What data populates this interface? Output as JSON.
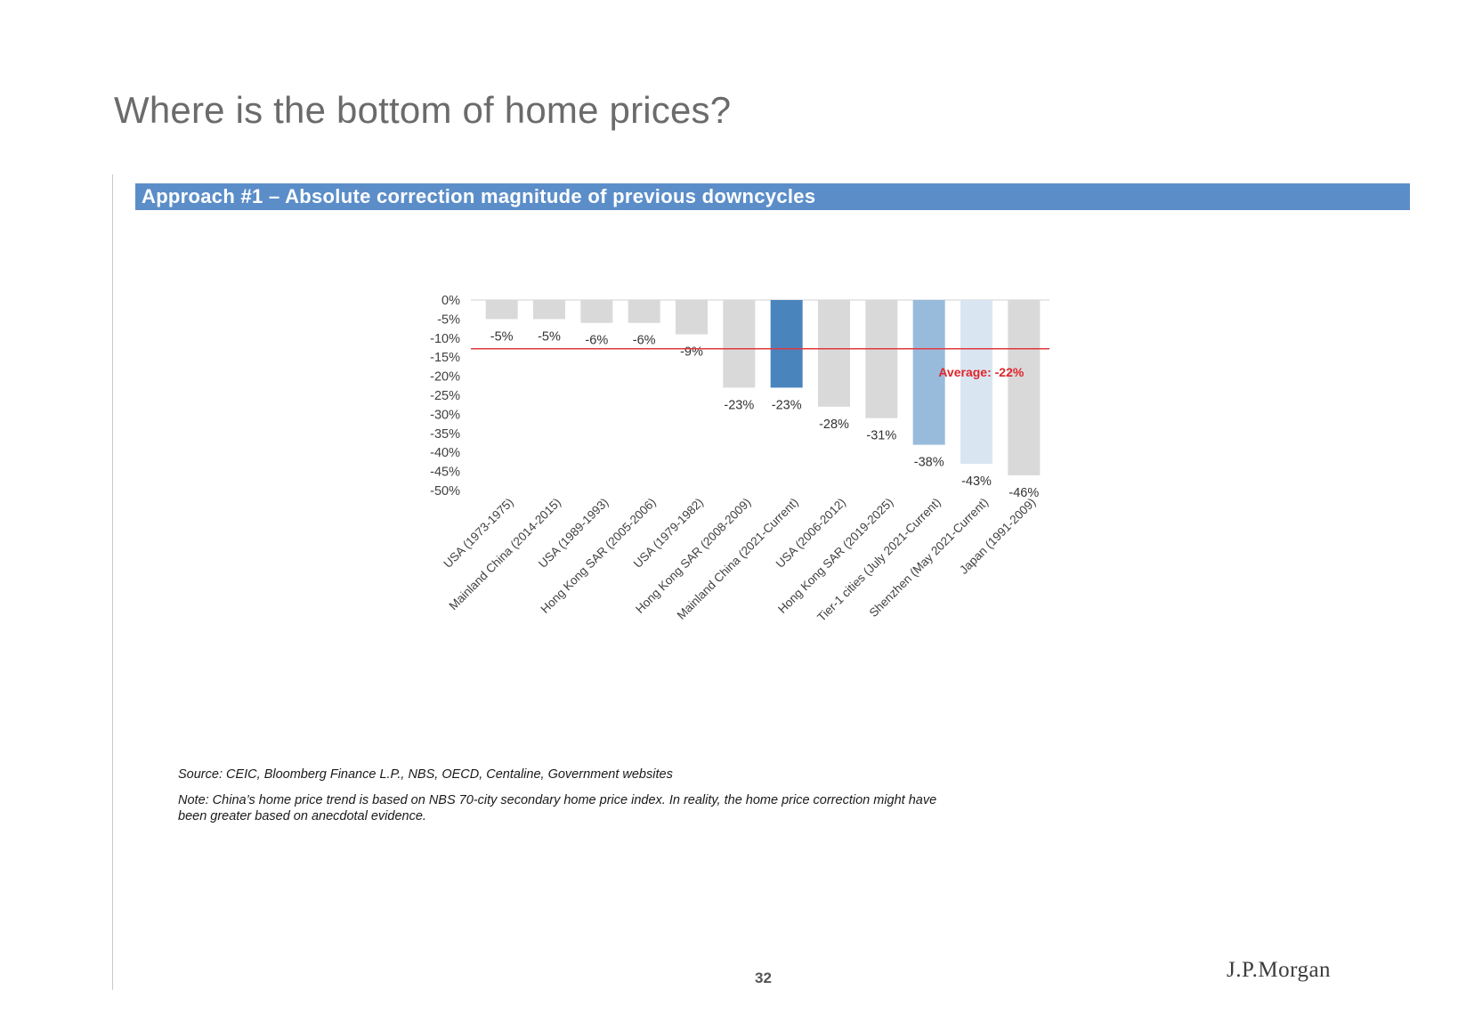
{
  "slide": {
    "title": "Where is the bottom of home prices?",
    "banner": "Approach #1 – Absolute correction magnitude of previous downcycles",
    "source": "Source: CEIC, Bloomberg Finance L.P., NBS, OECD, Centaline, Government websites",
    "note": "Note: China’s home price trend is based on NBS 70-city secondary home price index. In reality, the home price correction might have been greater based on anecdotal evidence.",
    "page_number": "32",
    "brand": "J.P.Morgan"
  },
  "colors": {
    "banner": "#5b8ec9",
    "bar_default": "#d9d9d9",
    "bar_highlight": "#4a84bd",
    "bar_tier1": "#98bbdc",
    "bar_shenzhen": "#d9e6f2",
    "average_line": "#e0393e",
    "average_text": "#e0262b"
  },
  "chart_data": {
    "type": "bar",
    "categories": [
      "USA (1973-1975)",
      "Mainland China (2014-2015)",
      "USA (1989-1993)",
      "Hong Kong SAR (2005-2006)",
      "USA (1979-1982)",
      "Hong Kong SAR (2008-2009)",
      "Mainland China (2021-Current)",
      "USA (2006-2012)",
      "Hong Kong SAR (2019-2025)",
      "Tier-1 cities (July 2021-Current)",
      "Shenzhen (May 2021-Current)",
      "Japan (1991-2009)"
    ],
    "values": [
      -5,
      -5,
      -6,
      -6,
      -9,
      -23,
      -23,
      -28,
      -31,
      -38,
      -43,
      -46
    ],
    "value_labels": [
      "-5%",
      "-5%",
      "-6%",
      "-6%",
      "-9%",
      "-23%",
      "-23%",
      "-28%",
      "-31%",
      "-38%",
      "-43%",
      "-46%"
    ],
    "bar_colors": [
      "bar_default",
      "bar_default",
      "bar_default",
      "bar_default",
      "bar_default",
      "bar_default",
      "bar_highlight",
      "bar_default",
      "bar_default",
      "bar_tier1",
      "bar_shenzhen",
      "bar_default"
    ],
    "yticks": [
      0,
      -5,
      -10,
      -15,
      -20,
      -25,
      -30,
      -35,
      -40,
      -45,
      -50
    ],
    "ytick_labels": [
      "0%",
      "-5%",
      "-10%",
      "-15%",
      "-20%",
      "-25%",
      "-30%",
      "-35%",
      "-40%",
      "-45%",
      "-50%"
    ],
    "ylim": [
      -50,
      0
    ],
    "average": {
      "value": -22,
      "label_prefix": "Average: ",
      "label_value": "-22%"
    },
    "grid": false,
    "legend": "none"
  }
}
